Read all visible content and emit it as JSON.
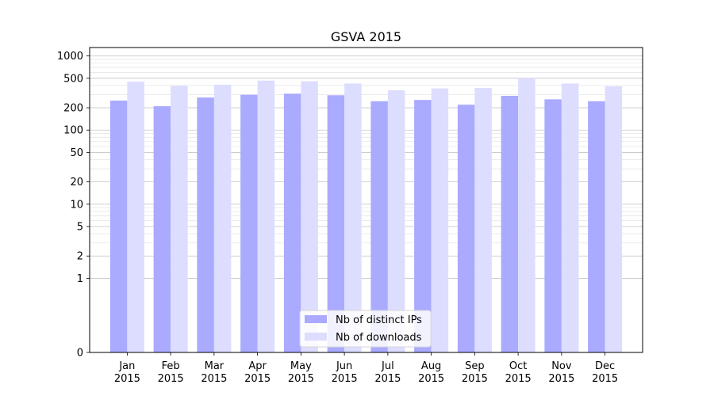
{
  "chart_data": {
    "type": "bar",
    "title": "GSVA 2015",
    "xlabel": "",
    "ylabel": "",
    "y_scale": "symlog",
    "ylim": [
      0,
      1300
    ],
    "y_ticks": [
      0,
      1,
      2,
      5,
      10,
      20,
      50,
      100,
      200,
      500,
      1000
    ],
    "categories": [
      [
        "Jan",
        "2015"
      ],
      [
        "Feb",
        "2015"
      ],
      [
        "Mar",
        "2015"
      ],
      [
        "Apr",
        "2015"
      ],
      [
        "May",
        "2015"
      ],
      [
        "Jun",
        "2015"
      ],
      [
        "Jul",
        "2015"
      ],
      [
        "Aug",
        "2015"
      ],
      [
        "Sep",
        "2015"
      ],
      [
        "Oct",
        "2015"
      ],
      [
        "Nov",
        "2015"
      ],
      [
        "Dec",
        "2015"
      ]
    ],
    "series": [
      {
        "name": "Nb of distinct IPs",
        "color": "#aaaaff",
        "values": [
          250,
          210,
          275,
          300,
          310,
          295,
          245,
          255,
          220,
          290,
          260,
          245
        ]
      },
      {
        "name": "Nb of downloads",
        "color": "#ddddff",
        "values": [
          450,
          395,
          410,
          465,
          455,
          425,
          345,
          365,
          370,
          500,
          425,
          390
        ]
      }
    ],
    "grid": true,
    "legend_position": "bottom-center"
  }
}
